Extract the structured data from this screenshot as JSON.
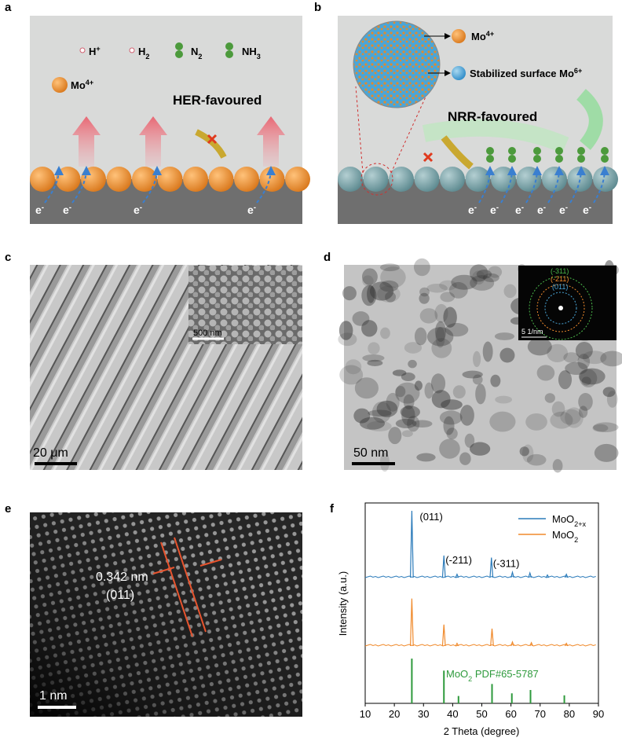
{
  "panel_a": {
    "label": "a",
    "legend": [
      {
        "text": "H",
        "sup": "+"
      },
      {
        "text": "H",
        "sub": "2"
      },
      {
        "text": "N",
        "sub": "2"
      },
      {
        "text": "NH",
        "sub": "3"
      }
    ],
    "species": {
      "text": "Mo",
      "sup": "4+"
    },
    "title": "HER-favoured",
    "electrons": [
      {
        "text": "e",
        "sup": "-"
      },
      {
        "text": "e",
        "sup": "-"
      },
      {
        "text": "e",
        "sup": "-"
      },
      {
        "text": "e",
        "sup": "-"
      }
    ]
  },
  "panel_b": {
    "label": "b",
    "species": [
      {
        "text": "Mo",
        "sup": "4+"
      },
      {
        "text": "Stabilized surface Mo",
        "sup": "6+"
      }
    ],
    "title": "NRR-favoured",
    "electrons": [
      {
        "text": "e",
        "sup": "-"
      },
      {
        "text": "e",
        "sup": "-"
      },
      {
        "text": "e",
        "sup": "-"
      },
      {
        "text": "e",
        "sup": "-"
      },
      {
        "text": "e",
        "sup": "-"
      },
      {
        "text": "e",
        "sup": "-"
      }
    ]
  },
  "panel_c": {
    "label": "c",
    "scale_bar": "20 μm",
    "inset_scale_bar": "500 nm"
  },
  "panel_d": {
    "label": "d",
    "scale_bar": "50 nm",
    "inset_scale_bar": "5 1/nm",
    "inset_rings": [
      "(-311)",
      "(-211)",
      "(011)"
    ]
  },
  "panel_e": {
    "label": "e",
    "spacing": "0.342 nm",
    "plane": "(011)",
    "scale_bar": "1 nm"
  },
  "chart_data": {
    "type": "line",
    "label": "f",
    "xlabel": "2 Theta (degree)",
    "ylabel": "Intensity (a.u.)",
    "xlim": [
      10,
      90
    ],
    "xticks": [
      10,
      20,
      30,
      40,
      50,
      60,
      70,
      80,
      90
    ],
    "series": [
      {
        "name": "MoO",
        "name_sub": "2+x",
        "color": "#2b7bba",
        "x": [
          26,
          37,
          41.5,
          53.3,
          60.5,
          66.5,
          72.5,
          79
        ],
        "values": [
          100,
          33,
          5,
          30,
          8,
          7,
          4,
          5
        ]
      },
      {
        "name": "MoO",
        "name_sub": "2",
        "color": "#f08a2c",
        "x": [
          26,
          37,
          41.5,
          53.5,
          60.5,
          67,
          79
        ],
        "values": [
          71,
          32,
          4,
          26,
          6,
          5,
          4
        ]
      }
    ],
    "annotations": [
      "(011)",
      "(-211)",
      "(-311)"
    ],
    "reference": {
      "text": "MoO",
      "sub": "2",
      "rest": " PDF#65-5787",
      "color": "#2e9a3c",
      "x": [
        26,
        37,
        42,
        53.5,
        60.3,
        66.7,
        78.3
      ],
      "values": [
        67,
        49,
        11,
        29,
        15,
        20,
        12
      ]
    }
  }
}
